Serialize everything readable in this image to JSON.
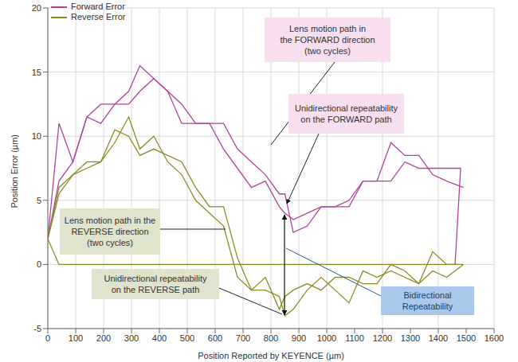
{
  "chart_data": {
    "type": "line",
    "x_label": "Position Reported by KEYENCE (µm)",
    "y_label": "Position Error (µm)",
    "xlim": [
      0,
      1600
    ],
    "xticks": [
      0,
      100,
      200,
      300,
      400,
      500,
      600,
      700,
      800,
      900,
      1000,
      1100,
      1200,
      1300,
      1400,
      1500,
      1600
    ],
    "ylim": [
      -5,
      20
    ],
    "yticks": [
      -5,
      0,
      5,
      10,
      15,
      20
    ],
    "grid": true,
    "legend": "upper left",
    "series": [
      {
        "name": "Forward Error",
        "color": "#b0449c",
        "cycles": [
          {
            "x": [
              0,
              40,
              90,
              140,
              190,
              240,
              290,
              330,
              380,
              430,
              480,
              530,
              580,
              630,
              680,
              730,
              780,
              830,
              850,
              880,
              930,
              980,
              1030,
              1080,
              1130,
              1180,
              1230,
              1280,
              1330,
              1380,
              1430,
              1490
            ],
            "values": [
              2,
              11,
              8,
              11.5,
              11,
              12.5,
              13.5,
              15.5,
              14.5,
              13.5,
              12.5,
              11,
              11,
              11,
              9,
              8,
              7,
              5.5,
              5.5,
              2.5,
              3,
              4.5,
              4.5,
              5,
              6.5,
              6.5,
              9.5,
              8.5,
              8.5,
              7,
              6.5,
              6
            ]
          },
          {
            "x": [
              0,
              40,
              90,
              140,
              190,
              240,
              290,
              330,
              380,
              430,
              480,
              530,
              580,
              630,
              680,
              730,
              780,
              830,
              850,
              880,
              930,
              980,
              1030,
              1080,
              1130,
              1180,
              1230,
              1280,
              1330,
              1380,
              1430,
              1480,
              1460
            ],
            "values": [
              2,
              6.5,
              8,
              11.5,
              12.5,
              12.5,
              12.5,
              13.5,
              14.5,
              13.5,
              11,
              11,
              11,
              9,
              7.5,
              6,
              6.5,
              4.5,
              4,
              3.5,
              4,
              4.5,
              4.5,
              4.5,
              6.5,
              6.5,
              6.5,
              8,
              7.5,
              7.5,
              7.5,
              7.5,
              0
            ]
          }
        ]
      },
      {
        "name": "Reverse Error",
        "color": "#8c8c24",
        "cycles": [
          {
            "x": [
              1460,
              40,
              0,
              40,
              90,
              140,
              190,
              240,
              290,
              330,
              380,
              430,
              480,
              530,
              580,
              630,
              680,
              730,
              780,
              830,
              850,
              880,
              930,
              980,
              1030,
              1080,
              1130,
              1180,
              1230,
              1280,
              1330,
              1380,
              1430,
              1490
            ],
            "values": [
              0,
              0,
              2,
              6,
              7,
              7.5,
              8,
              10.5,
              10,
              8.5,
              9,
              8.5,
              8,
              6,
              4.5,
              4.5,
              0.5,
              -2,
              -2,
              -2.5,
              -4,
              -3.5,
              -2,
              -1,
              -2,
              -3,
              -0.5,
              -1,
              -0.5,
              -1,
              -1.5,
              -0.5,
              -1,
              0
            ]
          },
          {
            "x": [
              0,
              40,
              90,
              140,
              190,
              240,
              290,
              330,
              380,
              430,
              480,
              530,
              580,
              630,
              680,
              730,
              780,
              830,
              850,
              880,
              930,
              980,
              1030,
              1080,
              1130,
              1180,
              1230,
              1280,
              1330,
              1380,
              1430,
              1490
            ],
            "values": [
              2,
              5.5,
              7,
              8,
              8,
              9.5,
              11.5,
              9,
              10,
              8,
              7,
              5,
              4,
              3,
              -1,
              -2,
              -1,
              -3.5,
              -2.5,
              -2,
              -1.5,
              -2,
              -1,
              -1,
              -1.5,
              -1.5,
              0,
              -0.5,
              -1.5,
              1,
              0,
              0
            ]
          }
        ]
      }
    ],
    "annotations": [
      {
        "text": [
          "Lens motion path in",
          "the FORWARD direction",
          "(two cycles)"
        ]
      },
      {
        "text": [
          "Unidirectional repeatability",
          "on the FORWARD path"
        ]
      },
      {
        "text": [
          "Lens motion path in the",
          "REVERSE direction",
          "(two cycles)"
        ]
      },
      {
        "text": [
          "Unidirectional repeatability",
          "on the REVERSE path"
        ]
      },
      {
        "text": [
          "Bidirectional",
          "Repeatability"
        ]
      }
    ]
  }
}
